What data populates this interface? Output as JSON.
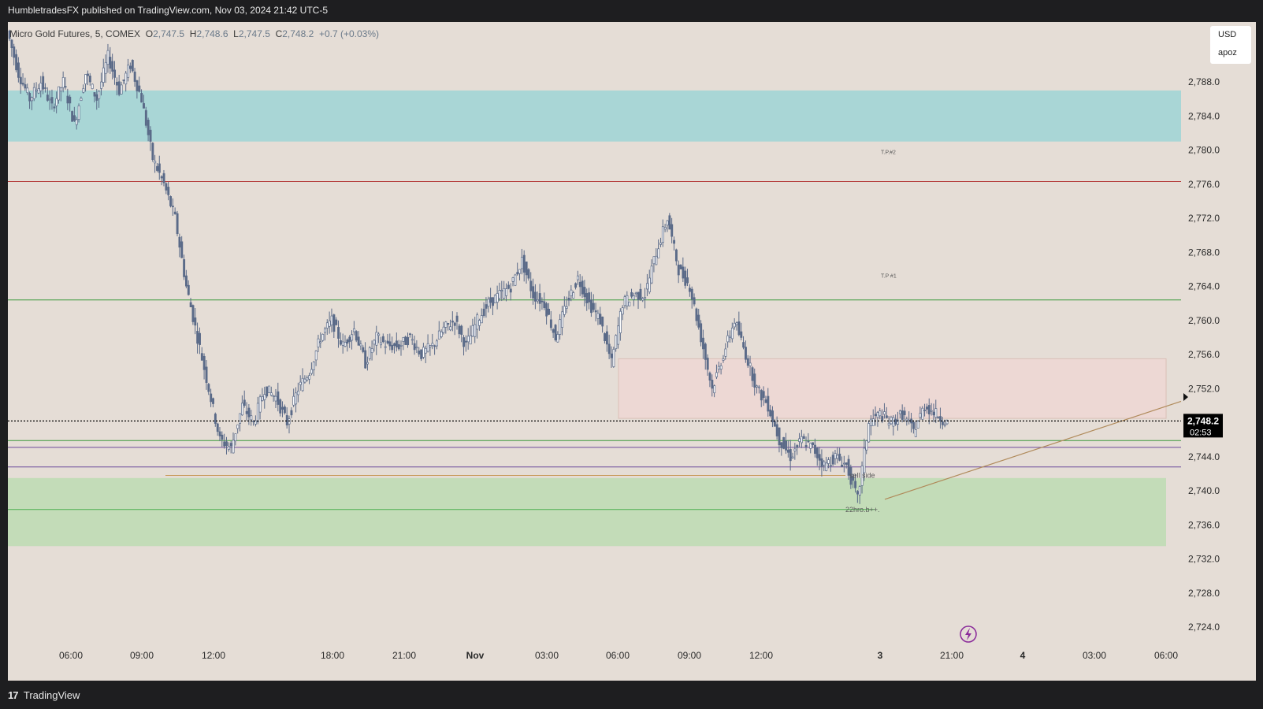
{
  "header": {
    "publisher_line": "HumbletradesFX published on TradingView.com, Nov 03, 2024 21:42 UTC-5"
  },
  "legend": {
    "symbol": "Micro Gold Futures, 5, COMEX",
    "o_label": "O",
    "o_value": "2,747.5",
    "h_label": "H",
    "h_value": "2,748.6",
    "l_label": "L",
    "l_value": "2,747.5",
    "c_label": "C",
    "c_value": "2,748.2",
    "change": "+0.7 (+0.03%)"
  },
  "currency": {
    "currency": "USD",
    "unit": "apoz"
  },
  "footer": {
    "brand": "TradingView",
    "logo_glyph": "17"
  },
  "colors": {
    "background": "#e5ddd6",
    "candle": "#5a6a88",
    "price_line": "#000000",
    "teal_zone": "#a9d6d6",
    "green_zone": "#c3dcb8",
    "pink_zone": "#f0d8d4",
    "red_line": "#b03030",
    "green_line": "#3a9a3a",
    "purple_line": "#6b4a9a",
    "orange_line": "#c89a5a",
    "trend_line": "#b08a5a"
  },
  "chart_data": {
    "type": "candlestick",
    "title": "Micro Gold Futures, 5, COMEX",
    "ylim": [
      2721.5,
      2797.5
    ],
    "y_ticks": [
      "2,788.0",
      "2,784.0",
      "2,780.0",
      "2,776.0",
      "2,772.0",
      "2,768.0",
      "2,764.0",
      "2,760.0",
      "2,756.0",
      "2,752.0",
      "2,744.0",
      "2,740.0",
      "2,736.0",
      "2,732.0",
      "2,728.0",
      "2,724.0"
    ],
    "x_ticks": [
      "06:00",
      "09:00",
      "12:00",
      "18:00",
      "21:00",
      "Nov",
      "03:00",
      "06:00",
      "09:00",
      "12:00",
      "3",
      "21:00",
      "4",
      "03:00",
      "06:00"
    ],
    "last_price": {
      "value": 2748.2,
      "label": "2,748.2",
      "countdown": "02:53"
    },
    "series": [
      {
        "name": "price path",
        "values": [
          2794,
          2789,
          2786,
          2788,
          2785,
          2788,
          2783,
          2789,
          2786,
          2791,
          2787,
          2790,
          2786,
          2779,
          2776,
          2772,
          2764,
          2758,
          2752,
          2746,
          2745,
          2750,
          2748,
          2752,
          2751,
          2748,
          2752,
          2754,
          2758,
          2760,
          2757,
          2759,
          2755,
          2758,
          2757,
          2757,
          2758,
          2756,
          2757,
          2759,
          2760,
          2757,
          2760,
          2762,
          2763,
          2764,
          2767,
          2763,
          2762,
          2758,
          2762,
          2765,
          2762,
          2760,
          2755,
          2762,
          2763,
          2763,
          2768,
          2772,
          2766,
          2764,
          2758,
          2752,
          2756,
          2760,
          2756,
          2752,
          2750,
          2746,
          2744,
          2746,
          2745,
          2743,
          2744,
          2743,
          2739,
          2748,
          2749,
          2748,
          2749,
          2747,
          2750,
          2749,
          2748
        ]
      }
    ],
    "zones": [
      {
        "label": "",
        "from": 2781,
        "to": 2787
      },
      {
        "label": "",
        "from": 2733.5,
        "to": 2741.5
      },
      {
        "label": "",
        "from": 2748.5,
        "to": 2755.5
      }
    ],
    "levels": [
      {
        "label": "",
        "value": 2776.3
      },
      {
        "label": "",
        "value": 2762.4
      },
      {
        "label": "",
        "value": 2745.9
      },
      {
        "label": "",
        "value": 2745.1
      },
      {
        "label": "",
        "value": 2742.8
      },
      {
        "label": "",
        "value": 2737.8
      }
    ],
    "annotations": [
      {
        "text": "T.P.#2",
        "y": 2779.8
      },
      {
        "text": "T.P #1",
        "y": 2765.3
      },
      {
        "text": "sell side",
        "y": 2741.8
      },
      {
        "text": "22hro.b++.",
        "y": 2737.8
      }
    ]
  }
}
